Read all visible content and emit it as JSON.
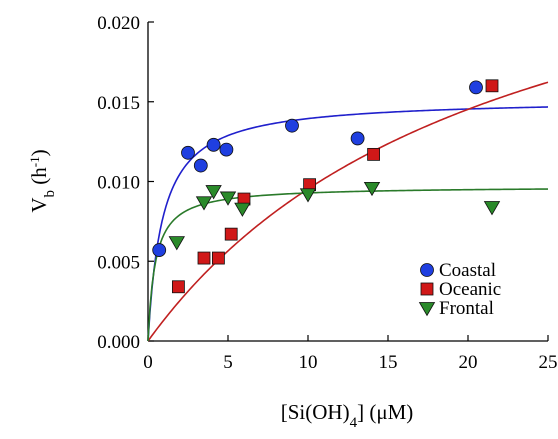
{
  "chart_data": {
    "type": "scatter",
    "title": "",
    "xlabel": {
      "base": "[Si(OH)",
      "sub": "4",
      "tail": "] (μM)"
    },
    "ylabel": {
      "base": "V",
      "sub": "b",
      "mid": " (h",
      "sup": "-1",
      "tail": ")"
    },
    "xlim": [
      0,
      25
    ],
    "ylim": [
      0,
      0.02
    ],
    "xticks": [
      0,
      5,
      10,
      15,
      20,
      25
    ],
    "xtick_labels": [
      "0",
      "5",
      "10",
      "15",
      "20",
      "25"
    ],
    "yticks": [
      0,
      0.005,
      0.01,
      0.015,
      0.02
    ],
    "ytick_labels": [
      "0.000",
      "0.005",
      "0.010",
      "0.015",
      "0.020"
    ],
    "grid": false,
    "legend_position": "bottom-right",
    "series": [
      {
        "name": "Coastal",
        "marker": "circle",
        "color": "#1f3fe0",
        "curve_color": "#2020cc",
        "fit": {
          "vmax": 0.0152,
          "ks": 0.9
        },
        "points": [
          [
            0.7,
            0.0057
          ],
          [
            2.5,
            0.0118
          ],
          [
            3.3,
            0.011
          ],
          [
            4.1,
            0.0123
          ],
          [
            4.9,
            0.012
          ],
          [
            9.0,
            0.0135
          ],
          [
            13.1,
            0.0127
          ],
          [
            20.5,
            0.0159
          ]
        ]
      },
      {
        "name": "Oceanic",
        "marker": "square",
        "color": "#d01818",
        "curve_color": "#c02020",
        "fit": {
          "vmax": 0.0305,
          "ks": 22.0
        },
        "points": [
          [
            1.9,
            0.0034
          ],
          [
            3.5,
            0.0052
          ],
          [
            4.4,
            0.0052
          ],
          [
            5.2,
            0.0067
          ],
          [
            6.0,
            0.0089
          ],
          [
            10.1,
            0.0098
          ],
          [
            14.1,
            0.0117
          ],
          [
            21.5,
            0.016
          ]
        ]
      },
      {
        "name": "Frontal",
        "marker": "triangle-down",
        "color": "#2a8a2a",
        "curve_color": "#2a7a2a",
        "fit": {
          "vmax": 0.0097,
          "ks": 0.45
        },
        "points": [
          [
            1.8,
            0.0062
          ],
          [
            3.5,
            0.0087
          ],
          [
            4.1,
            0.0094
          ],
          [
            5.0,
            0.009
          ],
          [
            5.9,
            0.0083
          ],
          [
            10.0,
            0.0092
          ],
          [
            14.0,
            0.0096
          ],
          [
            21.5,
            0.0084
          ]
        ]
      }
    ]
  }
}
